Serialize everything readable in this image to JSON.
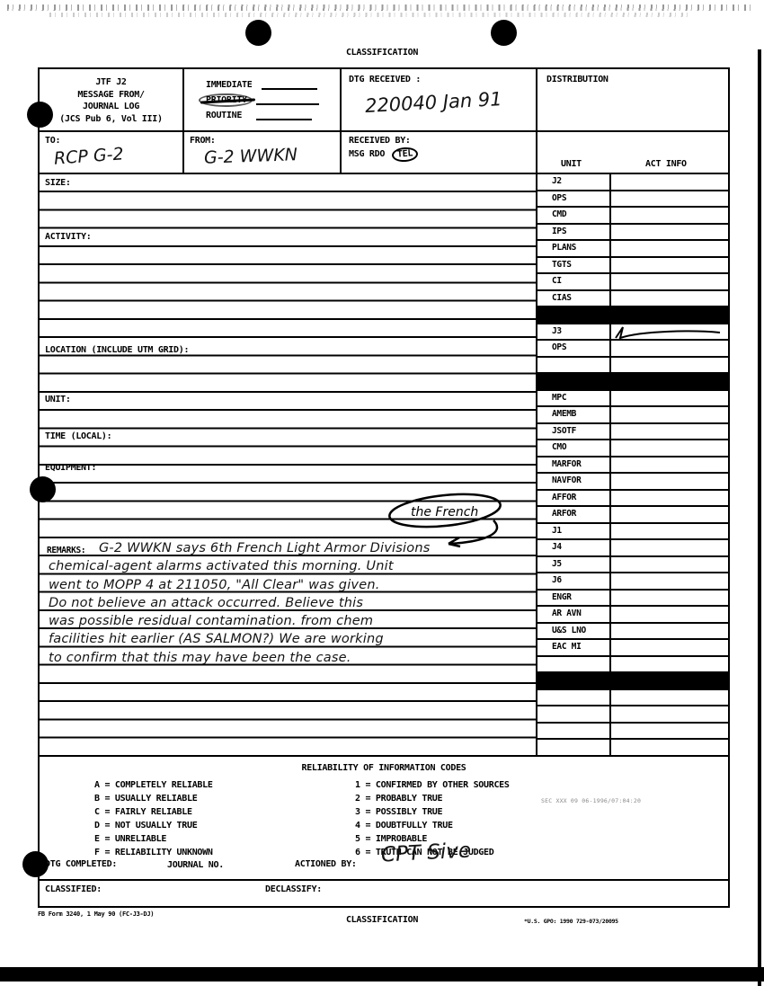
{
  "page": {
    "classification_top": "CLASSIFICATION",
    "classification_bottom": "CLASSIFICATION",
    "form_number": "FB Form 3240, 1 May 90 (FC-J3-DJ)",
    "gpo_note": "*U.S. GPO: 1990 729-073/20095"
  },
  "header": {
    "title_lines": [
      "JTF J2",
      "MESSAGE FROM/",
      "JOURNAL LOG",
      "(JCS Pub 6, Vol III)"
    ],
    "precedence": [
      "IMMEDIATE",
      "PRIORITY",
      "ROUTINE"
    ],
    "dtg_received_label": "DTG RECEIVED :",
    "dtg_received_value": "220040 Jan 91",
    "distribution_label": "DISTRIBUTION",
    "to_label": "TO:",
    "to_value": "RCP G-2",
    "from_label": "FROM:",
    "from_value": "G-2 WWKN",
    "received_by_label": "RECEIVED BY:",
    "received_by_options": [
      "MSG",
      "RDO",
      "TEL"
    ],
    "received_by_circled": "TEL"
  },
  "fields": {
    "size": "SIZE:",
    "activity": "ACTIVITY:",
    "location": "LOCATION (INCLUDE UTM GRID):",
    "unit": "UNIT:",
    "time": "TIME (LOCAL):",
    "equipment": "EQUIPMENT:",
    "remarks": "REMARKS:"
  },
  "distribution": {
    "unit_header": "UNIT",
    "act_info_header": "ACT INFO",
    "rows": [
      {
        "unit": "J2",
        "type": "row"
      },
      {
        "unit": "OPS",
        "type": "row"
      },
      {
        "unit": "CMD",
        "type": "row"
      },
      {
        "unit": "IPS",
        "type": "row"
      },
      {
        "unit": "PLANS",
        "type": "row"
      },
      {
        "unit": "TGTS",
        "type": "row"
      },
      {
        "unit": "CI",
        "type": "row"
      },
      {
        "unit": "CIAS",
        "type": "row"
      },
      {
        "type": "black"
      },
      {
        "unit": "J3",
        "type": "row",
        "mark": "check"
      },
      {
        "unit": "OPS",
        "type": "row"
      },
      {
        "unit": "",
        "type": "row"
      },
      {
        "type": "black"
      },
      {
        "unit": "MPC",
        "type": "row"
      },
      {
        "unit": "AMEMB",
        "type": "row"
      },
      {
        "unit": "JSOTF",
        "type": "row"
      },
      {
        "unit": "CMO",
        "type": "row"
      },
      {
        "unit": "MARFOR",
        "type": "row"
      },
      {
        "unit": "NAVFOR",
        "type": "row"
      },
      {
        "unit": "AFFOR",
        "type": "row"
      },
      {
        "unit": "ARFOR",
        "type": "row"
      },
      {
        "unit": "J1",
        "type": "row"
      },
      {
        "unit": "J4",
        "type": "row"
      },
      {
        "unit": "J5",
        "type": "row"
      },
      {
        "unit": "J6",
        "type": "row"
      },
      {
        "unit": "ENGR",
        "type": "row"
      },
      {
        "unit": "AR AVN",
        "type": "row"
      },
      {
        "unit": "U&S LNO",
        "type": "row"
      },
      {
        "unit": "EAC MI",
        "type": "row"
      },
      {
        "unit": "",
        "type": "row"
      },
      {
        "type": "black"
      },
      {
        "unit": "",
        "type": "row"
      },
      {
        "unit": "",
        "type": "row"
      },
      {
        "unit": "",
        "type": "row"
      },
      {
        "unit": "",
        "type": "row"
      }
    ]
  },
  "remarks": {
    "lines": [
      "G-2 WWKN says 6th French Light Armor Divisions",
      "chemical-agent alarms activated this morning.  Unit",
      "went to MOPP 4  at 211050, \"All Clear\" was given.",
      "Do not believe an attack occurred. Believe this",
      "was possible residual contamination. from chem",
      "facilities hit earlier (AS SALMON?) We are working",
      "to confirm that this may have been the case."
    ]
  },
  "annotation": {
    "text": "the French"
  },
  "reliability": {
    "title": "RELIABILITY OF INFORMATION CODES",
    "letter_codes": [
      "A = COMPLETELY RELIABLE",
      "B = USUALLY RELIABLE",
      "C = FAIRLY RELIABLE",
      "D = NOT USUALLY TRUE",
      "E = UNRELIABLE",
      "F = RELIABILITY UNKNOWN"
    ],
    "number_codes": [
      "1 = CONFIRMED BY OTHER SOURCES",
      "2 = PROBABLY TRUE",
      "3 = POSSIBLY TRUE",
      "4 = DOUBTFULLY TRUE",
      "5 = IMPROBABLE",
      "6 = TRUTH CAN NOT BE JUDGED"
    ],
    "stamp": "SEC XXX 09 06-1996/07:04:20"
  },
  "completion": {
    "dtg_completed_label": "DTG COMPLETED:",
    "journal_no_label": "JOURNAL NO.",
    "actioned_by_label": "ACTIONED BY:",
    "actioned_by_value": "CPT Sive",
    "classified_label": "CLASSIFIED:",
    "declassify_label": "DECLASSIFY:"
  },
  "colors": {
    "ink": "#000000",
    "paper": "#ffffff",
    "handwriting": "#141414"
  }
}
